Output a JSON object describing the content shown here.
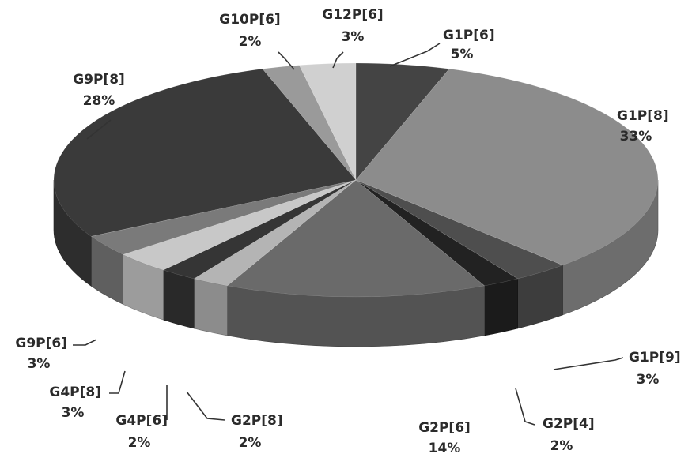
{
  "chart_data": {
    "type": "pie",
    "style": "3d-exploded-none",
    "title": "",
    "slices": [
      {
        "label": "G1P[6]",
        "pct_text": "5%",
        "value": 5,
        "color": "#444444"
      },
      {
        "label": "G1P[8]",
        "pct_text": "33%",
        "value": 33,
        "color": "#8c8c8c"
      },
      {
        "label": "G1P[9]",
        "pct_text": "3%",
        "value": 3,
        "color": "#4e4e4e"
      },
      {
        "label": "G2P[4]",
        "pct_text": "2%",
        "value": 2,
        "color": "#222222"
      },
      {
        "label": "G2P[6]",
        "pct_text": "14%",
        "value": 14,
        "color": "#6a6a6a"
      },
      {
        "label": "G2P[8]",
        "pct_text": "2%",
        "value": 2,
        "color": "#b4b4b4"
      },
      {
        "label": "G4P[6]",
        "pct_text": "2%",
        "value": 2,
        "color": "#353535"
      },
      {
        "label": "G4P[8]",
        "pct_text": "3%",
        "value": 3,
        "color": "#c8c8c8"
      },
      {
        "label": "G9P[6]",
        "pct_text": "3%",
        "value": 3,
        "color": "#7a7a7a"
      },
      {
        "label": "G9P[8]",
        "pct_text": "28%",
        "value": 28,
        "color": "#3a3a3a"
      },
      {
        "label": "G10P[6]",
        "pct_text": "2%",
        "value": 2,
        "color": "#9a9a9a"
      },
      {
        "label": "G12P[6]",
        "pct_text": "3%",
        "value": 3,
        "color": "#d0d0d0"
      }
    ]
  }
}
